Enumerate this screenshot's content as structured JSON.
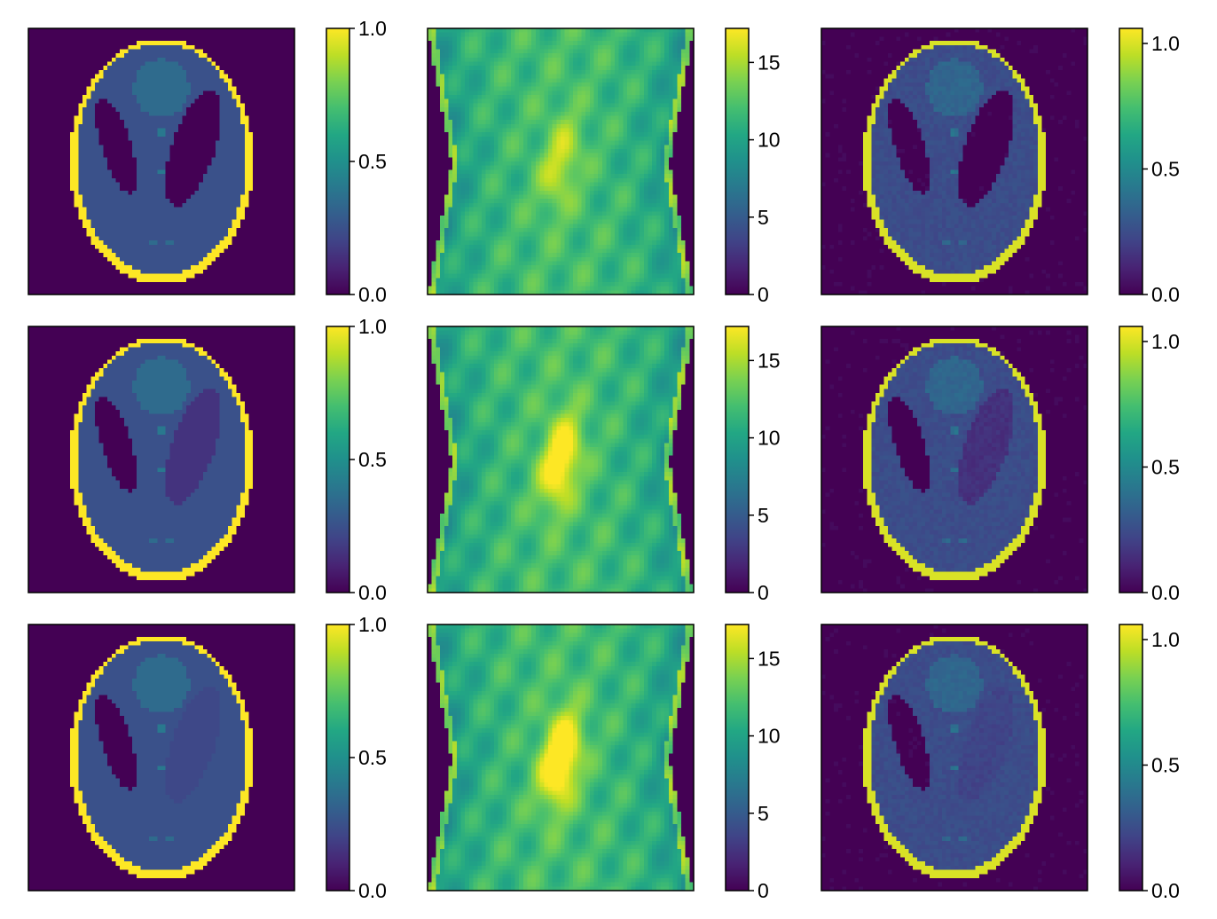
{
  "figure": {
    "layout": "3x3 grid of image panels, each with a vertical colorbar"
  },
  "chart_data": [
    {
      "type": "heatmap",
      "row": 0,
      "col": 0,
      "content": "phantom",
      "colormap": "viridis",
      "clim": [
        0,
        1.0
      ],
      "params": {
        "right_ellipse_value": 0.0
      },
      "colorbar_ticks": [
        0,
        0.5,
        1.0
      ],
      "colorbar_tick_labels": [
        "0.0",
        "0.5",
        "1.0"
      ]
    },
    {
      "type": "heatmap",
      "row": 0,
      "col": 1,
      "content": "sinogram",
      "colormap": "viridis",
      "clim": [
        0,
        17.2
      ],
      "params": {
        "right_ellipse_value": 0.0
      },
      "colorbar_ticks": [
        0,
        5,
        10,
        15
      ],
      "colorbar_tick_labels": [
        "0",
        "5",
        "10",
        "15"
      ]
    },
    {
      "type": "heatmap",
      "row": 0,
      "col": 2,
      "content": "reconstruction",
      "colormap": "viridis",
      "clim": [
        0,
        1.06
      ],
      "params": {
        "right_ellipse_value": 0.0
      },
      "colorbar_ticks": [
        0,
        0.5,
        1.0
      ],
      "colorbar_tick_labels": [
        "0.0",
        "0.5",
        "1.0"
      ]
    },
    {
      "type": "heatmap",
      "row": 1,
      "col": 0,
      "content": "phantom",
      "colormap": "viridis",
      "clim": [
        0,
        1.0
      ],
      "params": {
        "right_ellipse_value": 0.15
      },
      "colorbar_ticks": [
        0,
        0.5,
        1.0
      ],
      "colorbar_tick_labels": [
        "0.0",
        "0.5",
        "1.0"
      ]
    },
    {
      "type": "heatmap",
      "row": 1,
      "col": 1,
      "content": "sinogram",
      "colormap": "viridis",
      "clim": [
        0,
        17.2
      ],
      "params": {
        "right_ellipse_value": 0.15
      },
      "colorbar_ticks": [
        0,
        5,
        10,
        15
      ],
      "colorbar_tick_labels": [
        "0",
        "5",
        "10",
        "15"
      ]
    },
    {
      "type": "heatmap",
      "row": 1,
      "col": 2,
      "content": "reconstruction",
      "colormap": "viridis",
      "clim": [
        0,
        1.06
      ],
      "params": {
        "right_ellipse_value": 0.15
      },
      "colorbar_ticks": [
        0,
        0.5,
        1.0
      ],
      "colorbar_tick_labels": [
        "0.0",
        "0.5",
        "1.0"
      ]
    },
    {
      "type": "heatmap",
      "row": 2,
      "col": 0,
      "content": "phantom",
      "colormap": "viridis",
      "clim": [
        0,
        1.0
      ],
      "params": {
        "right_ellipse_value": 0.22
      },
      "colorbar_ticks": [
        0,
        0.5,
        1.0
      ],
      "colorbar_tick_labels": [
        "0.0",
        "0.5",
        "1.0"
      ]
    },
    {
      "type": "heatmap",
      "row": 2,
      "col": 1,
      "content": "sinogram",
      "colormap": "viridis",
      "clim": [
        0,
        17.2
      ],
      "params": {
        "right_ellipse_value": 0.22
      },
      "colorbar_ticks": [
        0,
        5,
        10,
        15
      ],
      "colorbar_tick_labels": [
        "0",
        "5",
        "10",
        "15"
      ]
    },
    {
      "type": "heatmap",
      "row": 2,
      "col": 2,
      "content": "reconstruction",
      "colormap": "viridis",
      "clim": [
        0,
        1.06
      ],
      "params": {
        "right_ellipse_value": 0.22
      },
      "colorbar_ticks": [
        0,
        0.5,
        1.0
      ],
      "colorbar_tick_labels": [
        "0.0",
        "0.5",
        "1.0"
      ]
    }
  ]
}
